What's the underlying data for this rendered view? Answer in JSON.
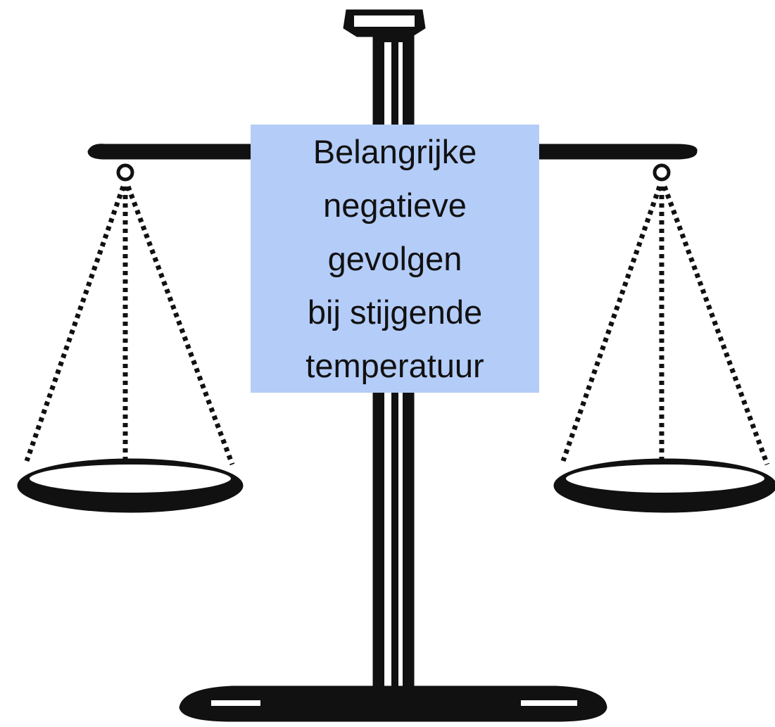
{
  "label": {
    "lines": [
      "Belangrijke",
      "negatieve",
      "gevolgen",
      "bij stijgende",
      "temperatuur"
    ]
  }
}
